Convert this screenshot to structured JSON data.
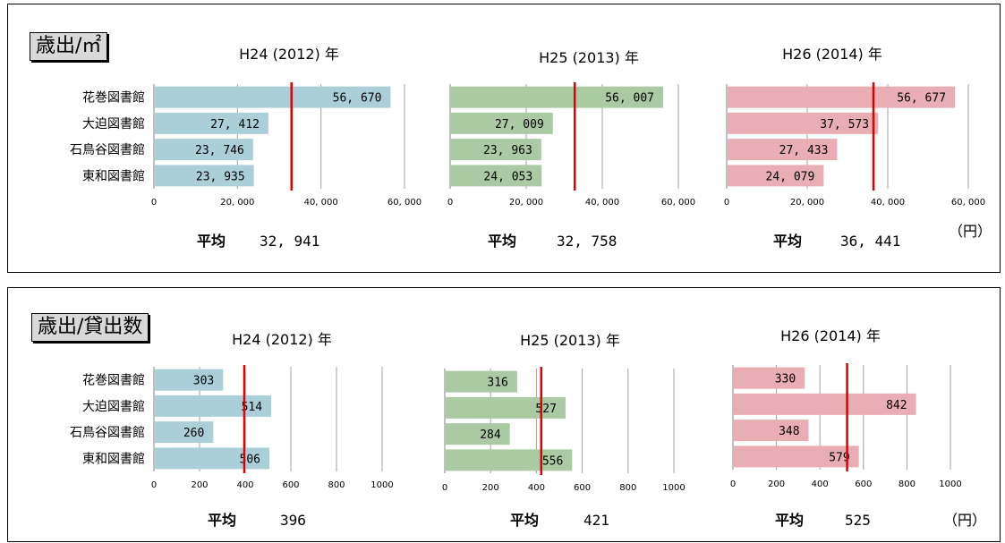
{
  "panels": [
    {
      "label": "歳出/㎡",
      "unit": "（円）",
      "avg_label": "平均",
      "colors": [
        "#aacfd9",
        "#aacaa3",
        "#e8aeb3"
      ],
      "avg_line_color": "#e00000"
    },
    {
      "label": "歳出/貸出数",
      "unit": "（円）",
      "avg_label": "平均",
      "colors": [
        "#aacfd9",
        "#aacaa3",
        "#e8aeb3"
      ],
      "avg_line_color": "#e00000"
    }
  ],
  "chart_data": [
    {
      "type": "bar",
      "orientation": "horizontal",
      "title": "H24 (2012) 年",
      "categories": [
        "花巻図書館",
        "大迫図書館",
        "石鳥谷図書館",
        "東和図書館"
      ],
      "values": [
        56670,
        27412,
        23746,
        23935
      ],
      "value_labels": [
        "56, 670",
        "27, 412",
        "23, 746",
        "23, 935"
      ],
      "average": 32941,
      "average_label": "32, 941",
      "xlim": [
        0,
        60000
      ],
      "xticks": [
        0,
        20000,
        40000,
        60000
      ],
      "xtick_labels": [
        "0",
        "20, 000",
        "40, 000",
        "60, 000"
      ],
      "show_categories": true
    },
    {
      "type": "bar",
      "orientation": "horizontal",
      "title": "H25 (2013) 年",
      "categories": [
        "花巻図書館",
        "大迫図書館",
        "石鳥谷図書館",
        "東和図書館"
      ],
      "values": [
        56007,
        27009,
        23963,
        24053
      ],
      "value_labels": [
        "56, 007",
        "27, 009",
        "23, 963",
        "24, 053"
      ],
      "average": 32758,
      "average_label": "32, 758",
      "xlim": [
        0,
        60000
      ],
      "xticks": [
        0,
        20000,
        40000,
        60000
      ],
      "xtick_labels": [
        "0",
        "20, 000",
        "40, 000",
        "60, 000"
      ],
      "show_categories": false
    },
    {
      "type": "bar",
      "orientation": "horizontal",
      "title": "H26 (2014) 年",
      "categories": [
        "花巻図書館",
        "大迫図書館",
        "石鳥谷図書館",
        "東和図書館"
      ],
      "values": [
        56677,
        37573,
        27433,
        24079
      ],
      "value_labels": [
        "56, 677",
        "37, 573",
        "27, 433",
        "24, 079"
      ],
      "average": 36441,
      "average_label": "36, 441",
      "xlim": [
        0,
        60000
      ],
      "xticks": [
        0,
        20000,
        40000,
        60000
      ],
      "xtick_labels": [
        "0",
        "20, 000",
        "40, 000",
        "60, 000"
      ],
      "show_categories": false
    },
    {
      "type": "bar",
      "orientation": "horizontal",
      "title": "H24 (2012) 年",
      "categories": [
        "花巻図書館",
        "大迫図書館",
        "石鳥谷図書館",
        "東和図書館"
      ],
      "values": [
        303,
        514,
        260,
        506
      ],
      "value_labels": [
        "303",
        "514",
        "260",
        "506"
      ],
      "average": 396,
      "average_label": "396",
      "xlim": [
        0,
        1000
      ],
      "xticks": [
        0,
        200,
        400,
        600,
        800,
        1000
      ],
      "xtick_labels": [
        "0",
        "200",
        "400",
        "600",
        "800",
        "1000"
      ],
      "show_categories": true
    },
    {
      "type": "bar",
      "orientation": "horizontal",
      "title": "H25 (2013) 年",
      "categories": [
        "花巻図書館",
        "大迫図書館",
        "石鳥谷図書館",
        "東和図書館"
      ],
      "values": [
        316,
        527,
        284,
        556
      ],
      "value_labels": [
        "316",
        "527",
        "284",
        "556"
      ],
      "average": 421,
      "average_label": "421",
      "xlim": [
        0,
        1000
      ],
      "xticks": [
        0,
        200,
        400,
        600,
        800,
        1000
      ],
      "xtick_labels": [
        "0",
        "200",
        "400",
        "600",
        "800",
        "1000"
      ],
      "show_categories": false
    },
    {
      "type": "bar",
      "orientation": "horizontal",
      "title": "H26 (2014) 年",
      "categories": [
        "花巻図書館",
        "大迫図書館",
        "石鳥谷図書館",
        "東和図書館"
      ],
      "values": [
        330,
        842,
        348,
        579
      ],
      "value_labels": [
        "330",
        "842",
        "348",
        "579"
      ],
      "average": 525,
      "average_label": "525",
      "xlim": [
        0,
        1000
      ],
      "xticks": [
        0,
        200,
        400,
        600,
        800,
        1000
      ],
      "xtick_labels": [
        "0",
        "200",
        "400",
        "600",
        "800",
        "1000"
      ],
      "show_categories": false
    }
  ]
}
